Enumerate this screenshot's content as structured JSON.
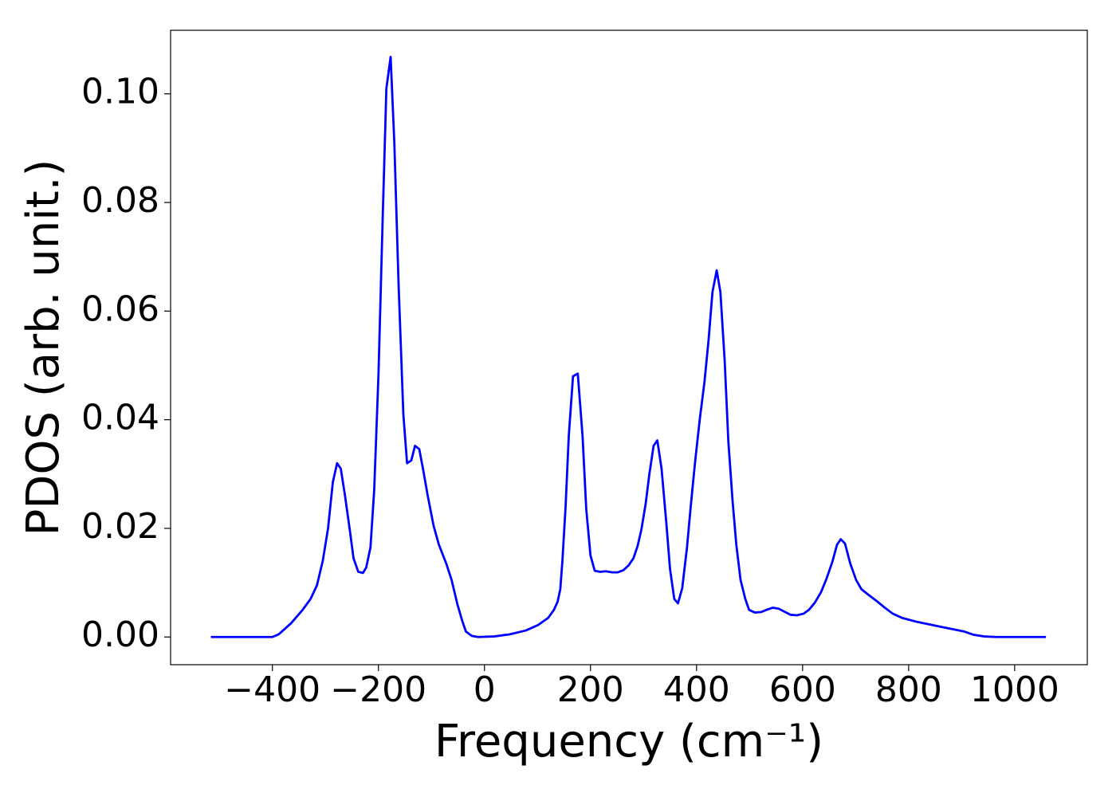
{
  "chart_data": {
    "type": "line",
    "xlabel": "Frequency (cm⁻¹)",
    "ylabel": "PDOS (arb. unit.)",
    "xlim": [
      -592,
      1137
    ],
    "ylim": [
      -0.0051,
      0.1117
    ],
    "xticks": [
      {
        "value": -400,
        "label": "−400"
      },
      {
        "value": -200,
        "label": "−200"
      },
      0,
      200,
      400,
      600,
      800,
      {
        "value": 1000,
        "label": "1000"
      }
    ],
    "yticks": [
      {
        "value": 0,
        "label": "0.00"
      },
      {
        "value": 0.02,
        "label": "0.02"
      },
      {
        "value": 0.04,
        "label": "0.04"
      },
      {
        "value": 0.06,
        "label": "0.06"
      },
      {
        "value": 0.08,
        "label": "0.08"
      },
      {
        "value": 0.1,
        "label": "0.10"
      }
    ],
    "grid": false,
    "x": [
      -516,
      -400,
      -388,
      -365,
      -343,
      -328,
      -316,
      -305,
      -295,
      -286,
      -278,
      -271,
      -263,
      -253,
      -247,
      -238,
      -229,
      -223,
      -215,
      -208,
      -200,
      -192,
      -185,
      -177,
      -170,
      -162,
      -153,
      -146,
      -138,
      -131,
      -123,
      -116,
      -107,
      -96,
      -86,
      -72,
      -62,
      -51,
      -42,
      -35,
      -24,
      -12,
      18,
      48,
      78,
      101,
      120,
      131,
      138,
      143,
      147,
      153,
      159,
      167,
      176,
      185,
      192,
      200,
      208,
      218,
      229,
      241,
      251,
      262,
      272,
      281,
      289,
      296,
      304,
      311,
      319,
      326,
      334,
      343,
      350,
      358,
      365,
      373,
      382,
      389,
      397,
      406,
      415,
      423,
      430,
      438,
      445,
      453,
      460,
      468,
      475,
      483,
      492,
      499,
      510,
      522,
      532,
      544,
      555,
      567,
      577,
      589,
      602,
      612,
      623,
      635,
      645,
      656,
      665,
      672,
      680,
      690,
      701,
      711,
      725,
      740,
      755,
      770,
      788,
      815,
      845,
      875,
      905,
      923,
      943,
      965,
      1059
    ],
    "series": [
      {
        "name": "PDOS",
        "color": "#0000ff",
        "values": [
          0,
          0,
          0.0005,
          0.0025,
          0.005,
          0.007,
          0.0095,
          0.014,
          0.02,
          0.0285,
          0.032,
          0.031,
          0.026,
          0.019,
          0.0145,
          0.012,
          0.0118,
          0.0128,
          0.0165,
          0.027,
          0.048,
          0.077,
          0.101,
          0.1068,
          0.091,
          0.065,
          0.041,
          0.032,
          0.0325,
          0.0352,
          0.0346,
          0.031,
          0.026,
          0.0205,
          0.017,
          0.0135,
          0.0105,
          0.006,
          0.003,
          0.001,
          0.0002,
          0,
          0.0001,
          0.0005,
          0.0012,
          0.0022,
          0.0035,
          0.005,
          0.0065,
          0.0088,
          0.014,
          0.024,
          0.037,
          0.048,
          0.0485,
          0.037,
          0.0235,
          0.015,
          0.0122,
          0.012,
          0.0121,
          0.0119,
          0.0119,
          0.0123,
          0.0132,
          0.0145,
          0.0168,
          0.0198,
          0.0245,
          0.03,
          0.0352,
          0.0362,
          0.031,
          0.021,
          0.0125,
          0.007,
          0.0062,
          0.009,
          0.0165,
          0.024,
          0.032,
          0.04,
          0.047,
          0.055,
          0.0635,
          0.0675,
          0.0635,
          0.051,
          0.036,
          0.025,
          0.017,
          0.0105,
          0.007,
          0.005,
          0.0045,
          0.0046,
          0.005,
          0.0054,
          0.0052,
          0.0046,
          0.0041,
          0.004,
          0.0043,
          0.005,
          0.0063,
          0.0083,
          0.0107,
          0.0138,
          0.017,
          0.018,
          0.0172,
          0.0135,
          0.0105,
          0.0088,
          0.0077,
          0.0066,
          0.0054,
          0.0043,
          0.0035,
          0.0028,
          0.0022,
          0.0016,
          0.001,
          0.0004,
          0.0001,
          0,
          0
        ]
      }
    ]
  }
}
